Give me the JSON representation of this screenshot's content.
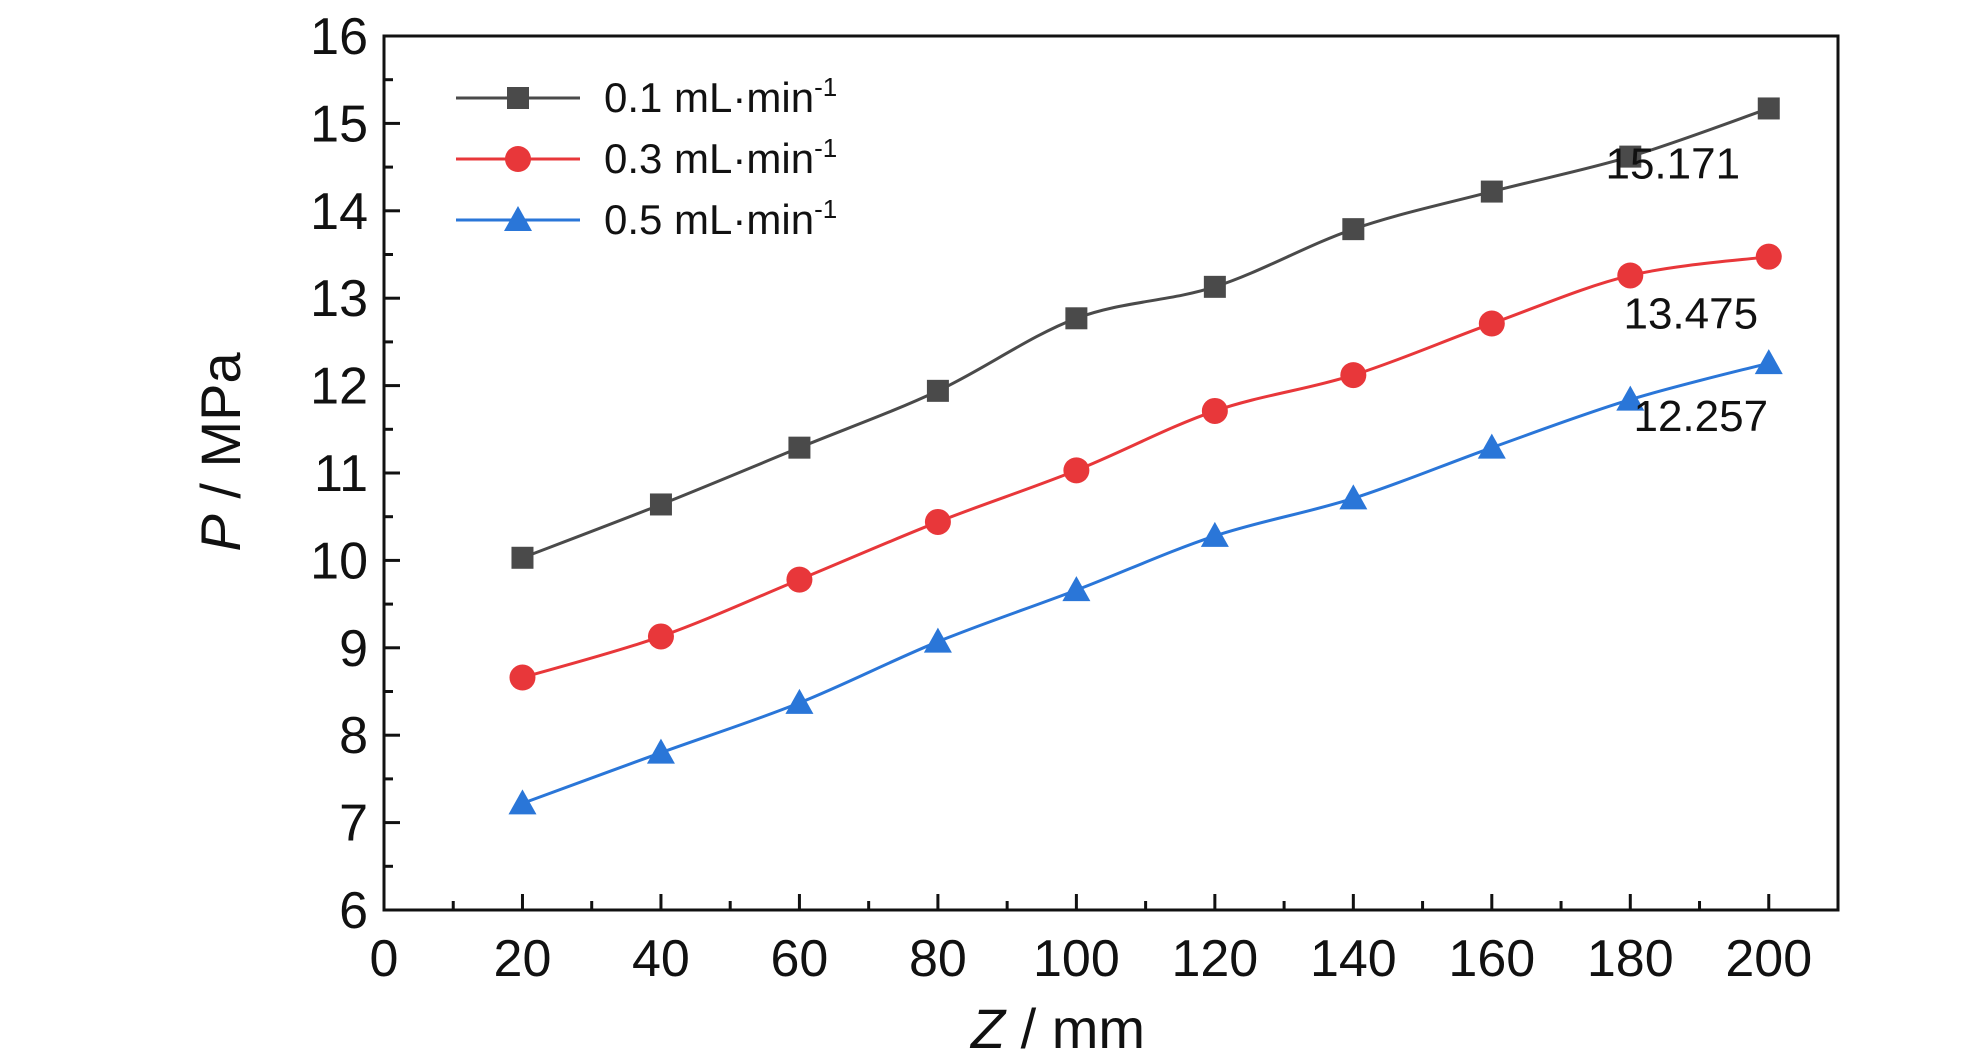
{
  "chart_data": {
    "type": "line",
    "title": "",
    "xlabel": {
      "var": "Z",
      "unit": " / mm"
    },
    "ylabel": {
      "var": "P",
      "unit": " / MPa"
    },
    "xlim": [
      0,
      210
    ],
    "ylim": [
      6,
      16
    ],
    "xticks": [
      0,
      20,
      40,
      60,
      80,
      100,
      120,
      140,
      160,
      180,
      200
    ],
    "yticks": [
      6,
      7,
      8,
      9,
      10,
      11,
      12,
      13,
      14,
      15,
      16
    ],
    "grid": false,
    "legend_position": "top-left",
    "x": [
      20,
      40,
      60,
      80,
      100,
      120,
      140,
      160,
      180,
      200
    ],
    "series": [
      {
        "name": "0.1 mL·min",
        "name_sup": "-1",
        "marker": "square",
        "color": "#4a4a4a",
        "values": [
          10.03,
          10.64,
          11.29,
          11.94,
          12.77,
          13.13,
          13.79,
          14.22,
          14.62,
          15.171
        ]
      },
      {
        "name": "0.3 mL·min",
        "name_sup": "-1",
        "marker": "circle",
        "color": "#e8373a",
        "values": [
          8.66,
          9.13,
          9.78,
          10.44,
          11.03,
          11.71,
          12.12,
          12.71,
          13.26,
          13.475
        ]
      },
      {
        "name": "0.5 mL·min",
        "name_sup": "-1",
        "marker": "triangle",
        "color": "#2a76d8",
        "values": [
          7.22,
          7.8,
          8.37,
          9.07,
          9.66,
          10.28,
          10.71,
          11.29,
          11.84,
          12.257
        ]
      }
    ],
    "annotations": [
      {
        "text": "15.171",
        "series": 0
      },
      {
        "text": "13.475",
        "series": 1
      },
      {
        "text": "12.257",
        "series": 2
      }
    ]
  }
}
